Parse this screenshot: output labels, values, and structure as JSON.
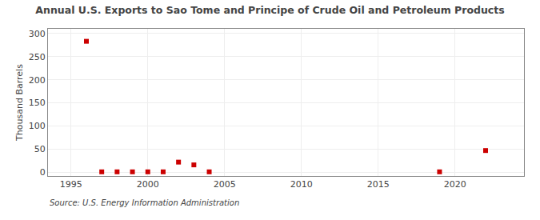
{
  "chart_data": {
    "type": "scatter",
    "title": "Annual U.S. Exports to Sao Tome and Principe of Crude Oil and Petroleum Products",
    "ylabel": "Thousand Barrels",
    "annotations": [
      "Source: U.S. Energy Information Administration"
    ],
    "x": [
      1996,
      1997,
      1998,
      1999,
      2000,
      2001,
      2002,
      2003,
      2004,
      2019,
      2022
    ],
    "values": [
      283,
      1,
      1,
      1,
      1,
      1,
      22,
      16,
      1,
      1,
      47
    ],
    "color": "#cc0000",
    "marker": "square",
    "xlim": [
      1993.5,
      2024.5
    ],
    "xticks": [
      1995,
      2000,
      2005,
      2010,
      2015,
      2020
    ],
    "ylim": [
      -8,
      310
    ],
    "yticks": [
      0,
      50,
      100,
      150,
      200,
      250,
      300
    ],
    "grid": true
  }
}
